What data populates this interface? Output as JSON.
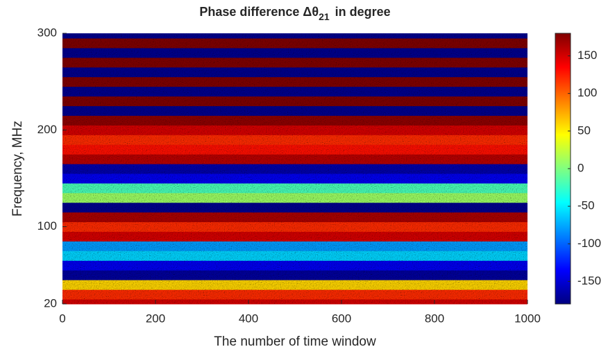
{
  "chart_data": {
    "type": "heatmap",
    "title": "Phase difference Δθ",
    "title_subscript": "21",
    "title_suffix": "in degree",
    "xlabel": "The number of time window",
    "ylabel": "Frequency, MHz",
    "xlim": [
      0,
      1000
    ],
    "xticks": [
      0,
      200,
      400,
      600,
      800,
      1000
    ],
    "ylim": [
      20,
      300
    ],
    "yticks": [
      20,
      100,
      200,
      300
    ],
    "y": [
      20,
      30,
      40,
      50,
      60,
      70,
      80,
      90,
      100,
      110,
      120,
      130,
      140,
      150,
      160,
      170,
      180,
      190,
      200,
      210,
      220,
      230,
      240,
      250,
      260,
      270,
      280,
      290,
      300
    ],
    "values": [
      150,
      120,
      60,
      -170,
      -140,
      -60,
      -80,
      150,
      120,
      165,
      -175,
      10,
      -20,
      -140,
      -165,
      160,
      130,
      120,
      150,
      175,
      -175,
      180,
      -175,
      180,
      -175,
      180,
      -175,
      180,
      -175
    ],
    "colormap": "jet",
    "clim": [
      -180,
      180
    ],
    "cticks": [
      -150,
      -100,
      -50,
      0,
      50,
      100,
      150
    ]
  }
}
